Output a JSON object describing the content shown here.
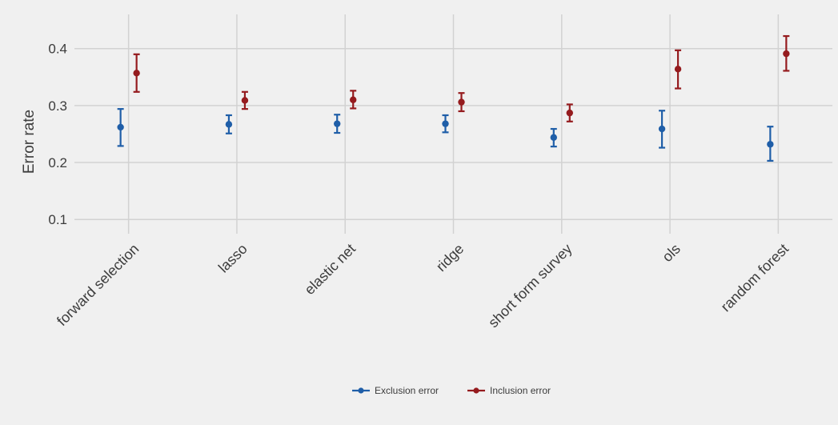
{
  "chart_data": {
    "type": "scatter",
    "ylabel": "Error rate",
    "xlabel": "",
    "title": "",
    "categories": [
      "forward selection",
      "lasso",
      "elastic net",
      "ridge",
      "short form survey",
      "ols",
      "random forest"
    ],
    "ylim": [
      0.075,
      0.46
    ],
    "yticks": [
      0.1,
      0.2,
      0.3,
      0.4
    ],
    "ytick_labels": [
      "0.1",
      "0.2",
      "0.3",
      "0.4"
    ],
    "grid": true,
    "legend_position": "bottom",
    "error_bars": true,
    "series": [
      {
        "name": "Exclusion error",
        "color": "#1f5ea8",
        "values": [
          0.262,
          0.267,
          0.268,
          0.268,
          0.244,
          0.259,
          0.232
        ],
        "lower": [
          0.229,
          0.251,
          0.252,
          0.253,
          0.228,
          0.226,
          0.203
        ],
        "upper": [
          0.294,
          0.283,
          0.284,
          0.283,
          0.259,
          0.291,
          0.263
        ]
      },
      {
        "name": "Inclusion error",
        "color": "#951b1e",
        "values": [
          0.357,
          0.309,
          0.31,
          0.306,
          0.287,
          0.364,
          0.391
        ],
        "lower": [
          0.324,
          0.294,
          0.295,
          0.29,
          0.272,
          0.33,
          0.361
        ],
        "upper": [
          0.39,
          0.324,
          0.326,
          0.322,
          0.302,
          0.397,
          0.422
        ]
      }
    ]
  },
  "colors": {
    "background": "#f0f0f0",
    "grid": "#d2d2d2",
    "text": "#3c3c3c"
  }
}
